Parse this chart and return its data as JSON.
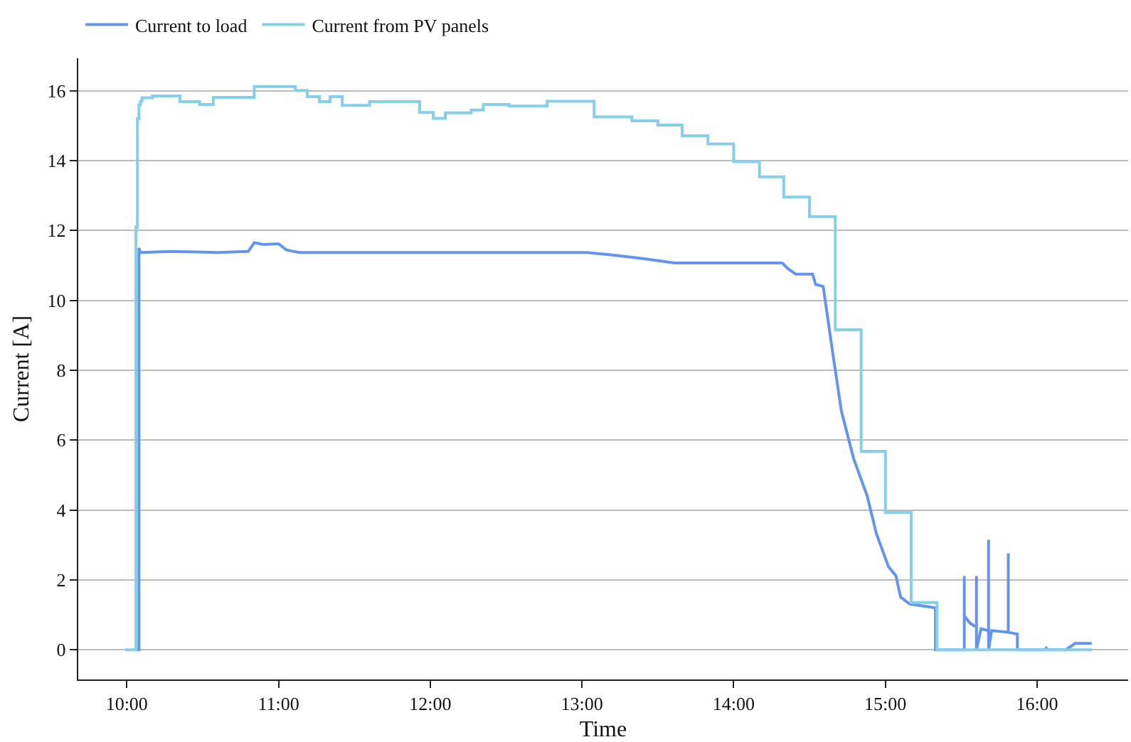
{
  "chart_data": {
    "type": "line",
    "xlabel": "Time",
    "ylabel": "Current [A]",
    "xlim": [
      9.68,
      16.6
    ],
    "ylim": [
      -0.85,
      16.93
    ],
    "xticks": [
      {
        "value": 10,
        "label": "10:00"
      },
      {
        "value": 11,
        "label": "11:00"
      },
      {
        "value": 12,
        "label": "12:00"
      },
      {
        "value": 13,
        "label": "13:00"
      },
      {
        "value": 14,
        "label": "14:00"
      },
      {
        "value": 15,
        "label": "15:00"
      },
      {
        "value": 16,
        "label": "16:00"
      }
    ],
    "yticks": [
      0,
      2,
      4,
      6,
      8,
      10,
      12,
      14,
      16
    ],
    "grid": "y",
    "legend": "top left",
    "line_style": "solid",
    "marker": "none",
    "series": [
      {
        "name": "Current to load",
        "color": "#6495ed",
        "x": [
          10.07,
          10.08,
          10.08,
          10.09,
          10.3,
          10.6,
          10.8,
          10.84,
          10.9,
          11.0,
          11.05,
          11.1,
          11.14,
          11.5,
          12.5,
          13.03,
          13.2,
          13.4,
          13.61,
          14.32,
          14.36,
          14.41,
          14.52,
          14.54,
          14.59,
          14.65,
          14.71,
          14.79,
          14.88,
          14.94,
          15.02,
          15.07,
          15.1,
          15.16,
          15.33,
          15.33,
          15.52,
          15.52,
          15.52,
          15.56,
          15.6,
          15.6,
          15.6,
          15.63,
          15.68,
          15.68,
          15.68,
          15.7,
          15.81,
          15.81,
          15.81,
          15.87,
          15.87,
          16.05,
          16.06,
          16.07,
          16.19,
          16.25,
          16.36
        ],
        "values": [
          0,
          0,
          11.5,
          11.37,
          11.4,
          11.37,
          11.4,
          11.65,
          11.6,
          11.62,
          11.45,
          11.4,
          11.37,
          11.37,
          11.37,
          11.37,
          11.3,
          11.2,
          11.07,
          11.07,
          10.9,
          10.75,
          10.75,
          10.46,
          10.4,
          8.58,
          6.83,
          5.48,
          4.4,
          3.33,
          2.38,
          2.11,
          1.51,
          1.31,
          1.2,
          0,
          0,
          2.11,
          0.97,
          0.75,
          0.65,
          2.11,
          0,
          0.6,
          0.55,
          3.15,
          0,
          0.55,
          0.5,
          2.76,
          0.5,
          0.45,
          0,
          0,
          0.05,
          0,
          0,
          0.18,
          0.18
        ]
      },
      {
        "name": "Current from PV panels",
        "color": "#87ceeb",
        "type": "step",
        "x": [
          9.99,
          10.06,
          10.07,
          10.08,
          10.09,
          10.1,
          10.17,
          10.35,
          10.48,
          10.57,
          10.84,
          11.11,
          11.19,
          11.27,
          11.34,
          11.42,
          11.6,
          11.93,
          12.02,
          12.1,
          12.27,
          12.35,
          12.52,
          12.77,
          13.08,
          13.33,
          13.5,
          13.66,
          13.83,
          14.0,
          14.17,
          14.33,
          14.5,
          14.67,
          14.84,
          15.0,
          15.17,
          15.34,
          16.36
        ],
        "values": [
          0,
          12.1,
          15.2,
          15.6,
          15.7,
          15.8,
          15.85,
          15.69,
          15.61,
          15.81,
          16.12,
          16.01,
          15.83,
          15.69,
          15.83,
          15.58,
          15.69,
          15.38,
          15.21,
          15.37,
          15.45,
          15.61,
          15.56,
          15.7,
          15.25,
          15.14,
          15.02,
          14.71,
          14.48,
          13.97,
          13.54,
          12.96,
          12.4,
          9.16,
          5.68,
          3.93,
          1.35,
          0,
          0
        ]
      }
    ]
  }
}
